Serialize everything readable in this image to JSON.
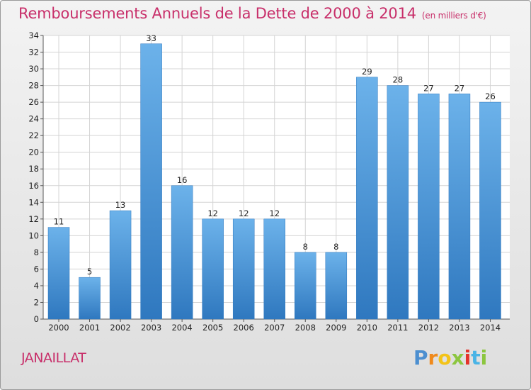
{
  "chart_data": {
    "type": "bar",
    "title": "Remboursements Annuels de la Dette de 2000 à 2014",
    "unit_note": "(en milliers d'€)",
    "categories": [
      "2000",
      "2001",
      "2002",
      "2003",
      "2004",
      "2005",
      "2006",
      "2007",
      "2008",
      "2009",
      "2010",
      "2011",
      "2012",
      "2013",
      "2014"
    ],
    "values": [
      11,
      5,
      13,
      33,
      16,
      12,
      12,
      12,
      8,
      8,
      29,
      28,
      27,
      27,
      26
    ],
    "ylim": [
      0,
      34
    ],
    "yticks": [
      0,
      2,
      4,
      6,
      8,
      10,
      12,
      14,
      16,
      18,
      20,
      22,
      24,
      26,
      28,
      30,
      32,
      34
    ],
    "grid": true,
    "bar_color": "#4a96d8",
    "bar_color_light": "#6cb2ea",
    "bar_color_dark": "#2f78bf"
  },
  "commune": "JANAILLAT",
  "logo": {
    "letters": [
      "P",
      "r",
      "o",
      "x",
      "i",
      "t",
      "i"
    ]
  }
}
